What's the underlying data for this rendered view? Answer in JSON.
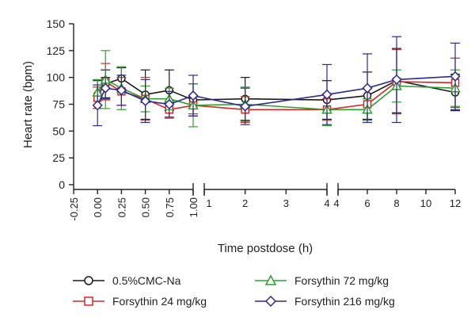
{
  "chart_data": {
    "type": "line",
    "title": "",
    "xlabel": "Time postdose (h)",
    "ylabel": "Heart rate (bpm)",
    "ylim": [
      0,
      150
    ],
    "yticks": [
      0,
      25,
      50,
      75,
      100,
      125,
      150
    ],
    "legend_position": "bottom",
    "grid": false,
    "segments": [
      {
        "xlim": [
          -0.25,
          1.0
        ],
        "ticks": [
          -0.25,
          0.0,
          0.25,
          0.5,
          0.75,
          1.0
        ],
        "tick_labels": [
          "-0.25",
          "0.00",
          "0.25",
          "0.50",
          "0.75",
          "1.00"
        ],
        "tick_rotation": -90
      },
      {
        "xlim": [
          1,
          4
        ],
        "ticks": [
          1,
          2,
          3,
          4
        ],
        "tick_labels": [
          "1",
          "2",
          "3",
          "4"
        ],
        "tick_rotation": 0
      },
      {
        "xlim": [
          4,
          12
        ],
        "ticks": [
          4,
          6,
          8,
          10,
          12
        ],
        "tick_labels": [
          "4",
          "6",
          "8",
          "10",
          "12"
        ],
        "tick_rotation": 0
      }
    ],
    "series": [
      {
        "name": "0.5%CMC-Na",
        "color": "#1a1a1a",
        "marker": "circle",
        "points": [
          {
            "x": 0.0,
            "y": 84,
            "err": 13
          },
          {
            "x": 0.083,
            "y": 94,
            "err": 13
          },
          {
            "x": 0.25,
            "y": 99,
            "err": 10
          },
          {
            "x": 0.5,
            "y": 84,
            "err": 23
          },
          {
            "x": 0.75,
            "y": 88,
            "err": 19
          },
          {
            "x": 1.0,
            "y": 79,
            "err": 15
          },
          {
            "x": 2,
            "y": 80,
            "err": 20
          },
          {
            "x": 4,
            "y": 79,
            "err": 18
          },
          {
            "x": 6,
            "y": 83,
            "err": 22
          },
          {
            "x": 8,
            "y": 97,
            "err": 30
          },
          {
            "x": 12,
            "y": 86,
            "err": 17
          }
        ]
      },
      {
        "name": "Forsythin 24 mg/kg",
        "color": "#d62728",
        "marker": "square",
        "points": [
          {
            "x": 0.0,
            "y": 81,
            "err": 10
          },
          {
            "x": 0.083,
            "y": 96,
            "err": 17
          },
          {
            "x": 0.25,
            "y": 87,
            "err": 13
          },
          {
            "x": 0.5,
            "y": 80,
            "err": 20
          },
          {
            "x": 0.75,
            "y": 70,
            "err": 8
          },
          {
            "x": 1.0,
            "y": 74,
            "err": 8
          },
          {
            "x": 2,
            "y": 70,
            "err": 12
          },
          {
            "x": 4,
            "y": 70,
            "err": 10
          },
          {
            "x": 6,
            "y": 75,
            "err": 15
          },
          {
            "x": 8,
            "y": 96,
            "err": 30
          },
          {
            "x": 12,
            "y": 95,
            "err": 23
          }
        ]
      },
      {
        "name": "Forsythin 72 mg/kg",
        "color": "#2ca02c",
        "marker": "triangle",
        "points": [
          {
            "x": 0.0,
            "y": 86,
            "err": 12
          },
          {
            "x": 0.083,
            "y": 98,
            "err": 27
          },
          {
            "x": 0.25,
            "y": 90,
            "err": 20
          },
          {
            "x": 0.5,
            "y": 80,
            "err": 12
          },
          {
            "x": 0.75,
            "y": 80,
            "err": 10
          },
          {
            "x": 1.0,
            "y": 74,
            "err": 20
          },
          {
            "x": 2,
            "y": 75,
            "err": 16
          },
          {
            "x": 4,
            "y": 70,
            "err": 15
          },
          {
            "x": 6,
            "y": 70,
            "err": 10
          },
          {
            "x": 8,
            "y": 92,
            "err": 15
          },
          {
            "x": 12,
            "y": 90,
            "err": 17
          }
        ]
      },
      {
        "name": "Forsythin 216 mg/kg",
        "color": "#2e2a8c",
        "marker": "diamond",
        "points": [
          {
            "x": 0.0,
            "y": 74,
            "err": 19
          },
          {
            "x": 0.083,
            "y": 90,
            "err": 10
          },
          {
            "x": 0.25,
            "y": 88,
            "err": 14
          },
          {
            "x": 0.5,
            "y": 78,
            "err": 20
          },
          {
            "x": 0.75,
            "y": 75,
            "err": 12
          },
          {
            "x": 1.0,
            "y": 83,
            "err": 19
          },
          {
            "x": 2,
            "y": 73,
            "err": 17
          },
          {
            "x": 4,
            "y": 84,
            "err": 28
          },
          {
            "x": 6,
            "y": 90,
            "err": 32
          },
          {
            "x": 8,
            "y": 98,
            "err": 40
          },
          {
            "x": 12,
            "y": 101,
            "err": 31
          }
        ]
      }
    ]
  }
}
